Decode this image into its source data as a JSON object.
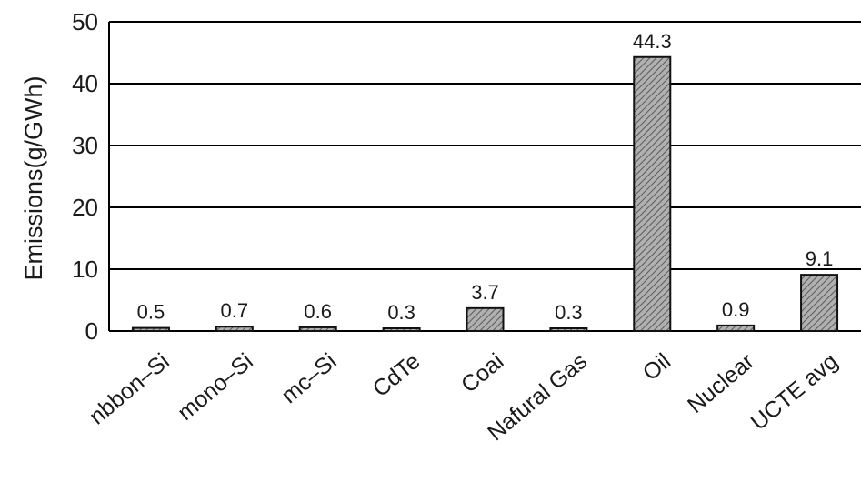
{
  "chart_data": {
    "type": "bar",
    "ylabel": "Emissions(g/GWh)",
    "ylim": [
      0,
      50
    ],
    "yticks": [
      0,
      10,
      20,
      30,
      40,
      50
    ],
    "grid": true,
    "categories": [
      "nbbon–Si",
      "mono–Si",
      "mc–Si",
      "CdTe",
      "Coai",
      "Nafural Gas",
      "Oil",
      "Nuclear",
      "UCTE avg"
    ],
    "values": [
      0.5,
      0.7,
      0.6,
      0.3,
      3.7,
      0.3,
      44.3,
      0.9,
      9.1
    ],
    "data_labels": [
      "0.5",
      "0.7",
      "0.6",
      "0.3",
      "3.7",
      "0.3",
      "44.3",
      "0.9",
      "9.1"
    ],
    "bar_fill": "#a9a9a9",
    "bar_hatch_color": "#5a5a5a"
  }
}
